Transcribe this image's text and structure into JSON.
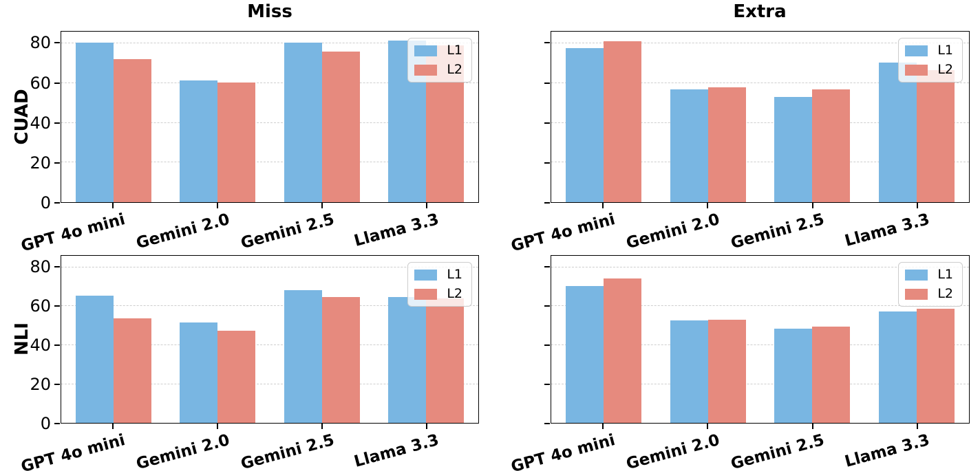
{
  "figure": {
    "column_titles": [
      "Miss",
      "Extra"
    ],
    "row_labels": [
      "CUAD",
      "NLI"
    ],
    "background": "#ffffff",
    "spine_color": "#000000",
    "grid_color": "#cdcdcd",
    "series_colors": {
      "L1": "#79B6E2",
      "L2": "#E68A7E"
    }
  },
  "chart_data": [
    {
      "type": "bar",
      "title": "Miss",
      "row": "CUAD",
      "categories": [
        "GPT 4o mini",
        "Gemini 2.0",
        "Gemini 2.5",
        "Llama 3.3"
      ],
      "series": [
        {
          "name": "L1",
          "color": "#79B6E2",
          "values": [
            80.3,
            61.5,
            80.5,
            81.6
          ]
        },
        {
          "name": "L2",
          "color": "#E68A7E",
          "values": [
            72.2,
            60.4,
            76.0,
            79.0
          ]
        }
      ],
      "ylim": [
        0,
        86
      ],
      "yticks": [
        0,
        20,
        40,
        60,
        80
      ],
      "show_ytick_labels": true,
      "grid": "horizontal-dashed",
      "legend_position": "upper-right"
    },
    {
      "type": "bar",
      "title": "Extra",
      "row": "CUAD",
      "categories": [
        "GPT 4o mini",
        "Gemini 2.0",
        "Gemini 2.5",
        "Llama 3.3"
      ],
      "series": [
        {
          "name": "L1",
          "color": "#79B6E2",
          "values": [
            77.6,
            56.9,
            52.9,
            70.3
          ]
        },
        {
          "name": "L2",
          "color": "#E68A7E",
          "values": [
            81.3,
            57.9,
            56.8,
            66.5
          ]
        }
      ],
      "ylim": [
        0,
        86
      ],
      "yticks": [
        0,
        20,
        40,
        60,
        80
      ],
      "show_ytick_labels": false,
      "grid": "horizontal-dashed",
      "legend_position": "upper-right"
    },
    {
      "type": "bar",
      "title": "Miss",
      "row": "NLI",
      "categories": [
        "GPT 4o mini",
        "Gemini 2.0",
        "Gemini 2.5",
        "Llama 3.3"
      ],
      "series": [
        {
          "name": "L1",
          "color": "#79B6E2",
          "values": [
            65.5,
            51.5,
            68.3,
            64.8
          ]
        },
        {
          "name": "L2",
          "color": "#E68A7E",
          "values": [
            53.7,
            47.5,
            64.6,
            64.2
          ]
        }
      ],
      "ylim": [
        0,
        86
      ],
      "yticks": [
        0,
        20,
        40,
        60,
        80
      ],
      "show_ytick_labels": true,
      "grid": "horizontal-dashed",
      "legend_position": "upper-right"
    },
    {
      "type": "bar",
      "title": "Extra",
      "row": "NLI",
      "categories": [
        "GPT 4o mini",
        "Gemini 2.0",
        "Gemini 2.5",
        "Llama 3.3"
      ],
      "series": [
        {
          "name": "L1",
          "color": "#79B6E2",
          "values": [
            70.3,
            52.6,
            48.4,
            57.4
          ]
        },
        {
          "name": "L2",
          "color": "#E68A7E",
          "values": [
            74.5,
            53.2,
            49.6,
            58.7
          ]
        }
      ],
      "ylim": [
        0,
        86
      ],
      "yticks": [
        0,
        20,
        40,
        60,
        80
      ],
      "show_ytick_labels": false,
      "grid": "horizontal-dashed",
      "legend_position": "upper-right"
    }
  ]
}
